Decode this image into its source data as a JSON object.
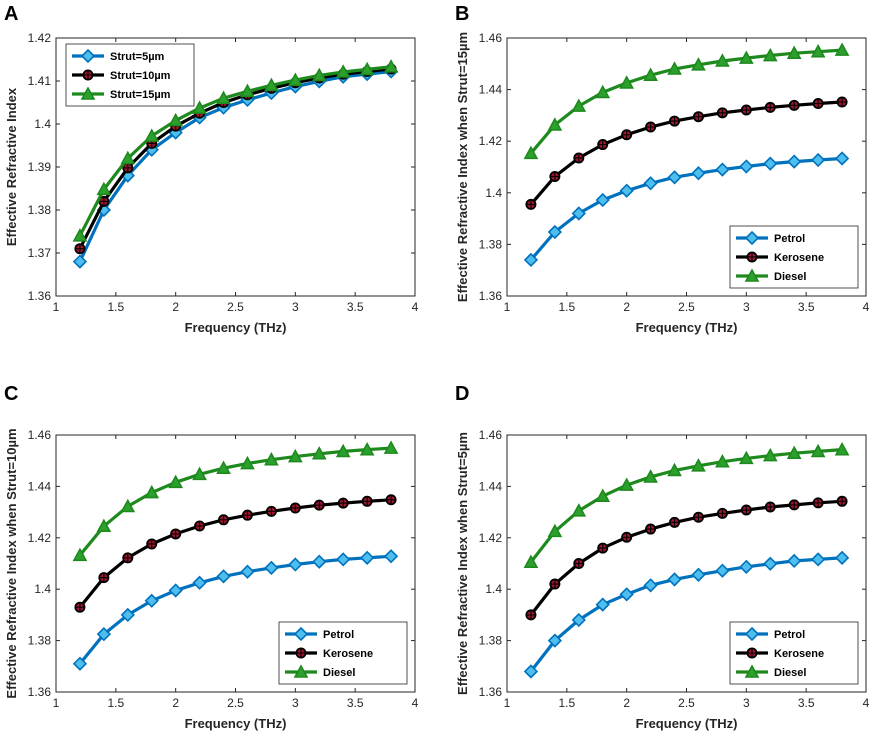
{
  "colors": {
    "blue": "#0072BD",
    "blue_fill": "#4DBEEE",
    "black": "#000000",
    "red_fill": "#A2142F",
    "green": "#1E8A1E",
    "green_fill": "#2CA02C"
  },
  "chart_data": [
    {
      "id": "A",
      "panel_label": "A",
      "type": "line",
      "xlabel": "Frequency (THz)",
      "ylabel": "Effective Refractive Index",
      "xlim": [
        1,
        4
      ],
      "ylim": [
        1.36,
        1.42
      ],
      "xticks": [
        1,
        1.5,
        2,
        2.5,
        3,
        3.5,
        4
      ],
      "xtick_labels": [
        "1",
        "1.5",
        "2",
        "2.5",
        "3",
        "3.5",
        "4"
      ],
      "yticks": [
        1.36,
        1.37,
        1.38,
        1.39,
        1.4,
        1.41,
        1.42
      ],
      "ytick_labels": [
        "1.36",
        "1.37",
        "1.38",
        "1.39",
        "1.4",
        "1.41",
        "1.42"
      ],
      "legend_position": "top-left",
      "x": [
        1.2,
        1.4,
        1.6,
        1.8,
        2.0,
        2.2,
        2.4,
        2.6,
        2.8,
        3.0,
        3.2,
        3.4,
        3.6,
        3.8
      ],
      "series": [
        {
          "name": "Strut=5µm",
          "style": "diamond",
          "values": [
            1.368,
            1.38,
            1.388,
            1.394,
            1.398,
            1.4015,
            1.4038,
            1.4056,
            1.4072,
            1.4087,
            1.4099,
            1.411,
            1.4116,
            1.4122
          ]
        },
        {
          "name": "Strut=10µm",
          "style": "star",
          "values": [
            1.371,
            1.382,
            1.3898,
            1.3955,
            1.3995,
            1.4025,
            1.405,
            1.4068,
            1.4083,
            1.4096,
            1.4107,
            1.4116,
            1.4122,
            1.4128
          ]
        },
        {
          "name": "Strut=15µm",
          "style": "triangle",
          "values": [
            1.374,
            1.3848,
            1.392,
            1.3972,
            1.4008,
            1.4037,
            1.406,
            1.4076,
            1.409,
            1.4102,
            1.4113,
            1.4121,
            1.4127,
            1.4133
          ]
        }
      ]
    },
    {
      "id": "B",
      "panel_label": "B",
      "type": "line",
      "xlabel": "Frequency (THz)",
      "ylabel": "Effective Refractive Index when Strut=15µm",
      "xlim": [
        1,
        4
      ],
      "ylim": [
        1.36,
        1.46
      ],
      "xticks": [
        1,
        1.5,
        2,
        2.5,
        3,
        3.5,
        4
      ],
      "xtick_labels": [
        "1",
        "1.5",
        "2",
        "2.5",
        "3",
        "3.5",
        "4"
      ],
      "yticks": [
        1.36,
        1.38,
        1.4,
        1.42,
        1.44,
        1.46
      ],
      "ytick_labels": [
        "1.36",
        "1.38",
        "1.4",
        "1.42",
        "1.44",
        "1.46"
      ],
      "legend_position": "bottom-right",
      "x": [
        1.2,
        1.4,
        1.6,
        1.8,
        2.0,
        2.2,
        2.4,
        2.6,
        2.8,
        3.0,
        3.2,
        3.4,
        3.6,
        3.8
      ],
      "series": [
        {
          "name": "Petrol",
          "style": "diamond",
          "values": [
            1.374,
            1.3848,
            1.392,
            1.3972,
            1.4008,
            1.4037,
            1.406,
            1.4076,
            1.409,
            1.4102,
            1.4113,
            1.4121,
            1.4127,
            1.4133
          ]
        },
        {
          "name": "Kerosene",
          "style": "star",
          "values": [
            1.3955,
            1.4063,
            1.4135,
            1.4187,
            1.4225,
            1.4255,
            1.4278,
            1.4295,
            1.431,
            1.4321,
            1.4331,
            1.4339,
            1.4346,
            1.4352
          ]
        },
        {
          "name": "Diesel",
          "style": "triangle",
          "values": [
            1.4153,
            1.4263,
            1.4336,
            1.4389,
            1.4426,
            1.4456,
            1.448,
            1.4496,
            1.4511,
            1.4522,
            1.4532,
            1.4541,
            1.4547,
            1.4553
          ]
        }
      ]
    },
    {
      "id": "C",
      "panel_label": "C",
      "type": "line",
      "xlabel": "Frequency (THz)",
      "ylabel": "Effective Refractive Index when Strut=10µm",
      "xlim": [
        1,
        4
      ],
      "ylim": [
        1.36,
        1.46
      ],
      "xticks": [
        1,
        1.5,
        2,
        2.5,
        3,
        3.5,
        4
      ],
      "xtick_labels": [
        "1",
        "1.5",
        "2",
        "2.5",
        "3",
        "3.5",
        "4"
      ],
      "yticks": [
        1.36,
        1.38,
        1.4,
        1.42,
        1.44,
        1.46
      ],
      "ytick_labels": [
        "1.36",
        "1.38",
        "1.4",
        "1.42",
        "1.44",
        "1.46"
      ],
      "legend_position": "bottom-right",
      "x": [
        1.2,
        1.4,
        1.6,
        1.8,
        2.0,
        2.2,
        2.4,
        2.6,
        2.8,
        3.0,
        3.2,
        3.4,
        3.6,
        3.8
      ],
      "series": [
        {
          "name": "Petrol",
          "style": "diamond",
          "values": [
            1.371,
            1.3825,
            1.39,
            1.3955,
            1.3995,
            1.4025,
            1.405,
            1.4068,
            1.4083,
            1.4096,
            1.4107,
            1.4116,
            1.4122,
            1.4128
          ]
        },
        {
          "name": "Kerosene",
          "style": "star",
          "values": [
            1.393,
            1.4045,
            1.4122,
            1.4176,
            1.4215,
            1.4246,
            1.427,
            1.4288,
            1.4303,
            1.4316,
            1.4327,
            1.4335,
            1.4342,
            1.4348
          ]
        },
        {
          "name": "Diesel",
          "style": "triangle",
          "values": [
            1.4132,
            1.4245,
            1.4322,
            1.4376,
            1.4416,
            1.4447,
            1.4471,
            1.4489,
            1.4504,
            1.4516,
            1.4527,
            1.4536,
            1.4543,
            1.4549
          ]
        }
      ]
    },
    {
      "id": "D",
      "panel_label": "D",
      "type": "line",
      "xlabel": "Frequency (THz)",
      "ylabel": "Effective Refractive Index when Strut=5µm",
      "xlim": [
        1,
        4
      ],
      "ylim": [
        1.36,
        1.46
      ],
      "xticks": [
        1,
        1.5,
        2,
        2.5,
        3,
        3.5,
        4
      ],
      "xtick_labels": [
        "1",
        "1.5",
        "2",
        "2.5",
        "3",
        "3.5",
        "4"
      ],
      "yticks": [
        1.36,
        1.38,
        1.4,
        1.42,
        1.44,
        1.46
      ],
      "ytick_labels": [
        "1.36",
        "1.38",
        "1.4",
        "1.42",
        "1.44",
        "1.46"
      ],
      "legend_position": "bottom-right",
      "x": [
        1.2,
        1.4,
        1.6,
        1.8,
        2.0,
        2.2,
        2.4,
        2.6,
        2.8,
        3.0,
        3.2,
        3.4,
        3.6,
        3.8
      ],
      "series": [
        {
          "name": "Petrol",
          "style": "diamond",
          "values": [
            1.368,
            1.38,
            1.388,
            1.394,
            1.398,
            1.4015,
            1.4038,
            1.4056,
            1.4072,
            1.4087,
            1.4099,
            1.411,
            1.4116,
            1.4122
          ]
        },
        {
          "name": "Kerosene",
          "style": "star",
          "values": [
            1.39,
            1.402,
            1.41,
            1.416,
            1.4202,
            1.4234,
            1.426,
            1.428,
            1.4295,
            1.4308,
            1.432,
            1.4328,
            1.4336,
            1.4342
          ]
        },
        {
          "name": "Diesel",
          "style": "triangle",
          "values": [
            1.4105,
            1.4225,
            1.4305,
            1.4362,
            1.4405,
            1.4437,
            1.4462,
            1.448,
            1.4496,
            1.4509,
            1.452,
            1.4529,
            1.4536,
            1.4543
          ]
        }
      ]
    }
  ]
}
